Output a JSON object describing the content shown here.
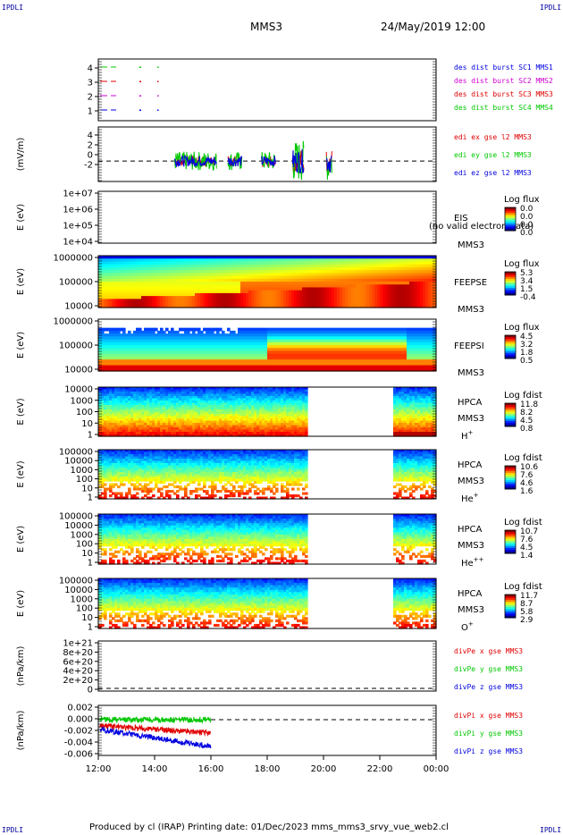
{
  "header": {
    "corner_label": "IPDLI",
    "title": "MMS3",
    "date": "24/May/2019 12:00"
  },
  "footer": {
    "text": "Produced by cl (IRAP)   Printing date: 01/Dec/2023   mms_mms3_srvy_vue_web2.cl"
  },
  "colors": {
    "red": "#e00000",
    "green": "#00c800",
    "blue": "#0000e0",
    "magenta": "#d000d0"
  },
  "chart_data": {
    "type": "multi-panel time series",
    "x_ticks": [
      "12:00",
      "14:00",
      "16:00",
      "18:00",
      "20:00",
      "22:00",
      "00:00"
    ],
    "panels": [
      {
        "id": "burst",
        "type": "line",
        "ylabel": "",
        "yticks": [
          "4",
          "3",
          "2",
          "1"
        ],
        "legend": [
          "des dist burst SC1 MMS1",
          "des dist burst SC2 MMS2",
          "des dist burst SC3 MMS3",
          "des dist burst SC4 MMS4"
        ]
      },
      {
        "id": "edi",
        "type": "line",
        "ylabel": "(mV/m)",
        "yticks": [
          "4",
          "2",
          "0",
          "-2"
        ],
        "ylim": [
          -3,
          5
        ],
        "legend": [
          "edi ex gse l2 MMS3",
          "edi ey gse l2 MMS3",
          "edi ez gse l2 MMS3"
        ]
      },
      {
        "id": "eis",
        "type": "heatmap",
        "ylabel": "E (eV)",
        "yticks": [
          "1e+07",
          "1e+06",
          "1e+05",
          "1e+04"
        ],
        "label1": "EIS",
        "label2": "MMS3",
        "overlay": "(no valid electron data)",
        "cbar_title": "Log flux",
        "cbar_ticks": [
          "0.0",
          "0.0",
          "0.0",
          "0.0"
        ]
      },
      {
        "id": "feepse",
        "type": "heatmap",
        "ylabel": "E (eV)",
        "yticks": [
          "1000000",
          "100000",
          "10000"
        ],
        "label1": "FEEPSE",
        "label2": "MMS3",
        "cbar_title": "Log flux",
        "cbar_ticks": [
          "5.3",
          "3.4",
          "1.5",
          "-0.4"
        ]
      },
      {
        "id": "feepsi",
        "type": "heatmap",
        "ylabel": "E (eV)",
        "yticks": [
          "1000000",
          "100000",
          "10000"
        ],
        "label1": "FEEPSI",
        "label2": "MMS3",
        "cbar_title": "Log flux",
        "cbar_ticks": [
          "4.5",
          "3.2",
          "1.8",
          "0.5"
        ]
      },
      {
        "id": "hpca_h",
        "type": "heatmap",
        "ylabel": "E (eV)",
        "yticks": [
          "10000",
          "1000",
          "100",
          "10",
          "1"
        ],
        "label1": "HPCA",
        "label2": "MMS3",
        "species": "H",
        "charge": "+",
        "gap": [
          "19:25",
          "22:30"
        ],
        "cbar_title": "Log fdist",
        "cbar_ticks": [
          "11.8",
          "8.2",
          "4.5",
          "0.8"
        ]
      },
      {
        "id": "hpca_he",
        "type": "heatmap",
        "ylabel": "E (eV)",
        "yticks": [
          "100000",
          "10000",
          "1000",
          "100",
          "10",
          "1"
        ],
        "label1": "HPCA",
        "label2": "MMS3",
        "species": "He",
        "charge": "+",
        "gap": [
          "19:25",
          "22:30"
        ],
        "cbar_title": "Log fdist",
        "cbar_ticks": [
          "10.6",
          "7.6",
          "4.6",
          "1.6"
        ]
      },
      {
        "id": "hpca_he2",
        "type": "heatmap",
        "ylabel": "E (eV)",
        "yticks": [
          "100000",
          "10000",
          "1000",
          "100",
          "10",
          "1"
        ],
        "label1": "HPCA",
        "label2": "MMS3",
        "species": "He",
        "charge": "++",
        "gap": [
          "19:25",
          "22:30"
        ],
        "cbar_title": "Log fdist",
        "cbar_ticks": [
          "10.7",
          "7.6",
          "4.5",
          "1.4"
        ]
      },
      {
        "id": "hpca_o",
        "type": "heatmap",
        "ylabel": "E (eV)",
        "yticks": [
          "100000",
          "10000",
          "1000",
          "100",
          "10",
          "1"
        ],
        "label1": "HPCA",
        "label2": "MMS3",
        "species": "O",
        "charge": "+",
        "gap": [
          "19:25",
          "22:30"
        ],
        "cbar_title": "Log fdist",
        "cbar_ticks": [
          "11.7",
          "8.7",
          "5.8",
          "2.9"
        ]
      },
      {
        "id": "divpe",
        "type": "line",
        "ylabel": "(nPa/km)",
        "yticks": [
          "1e+21",
          "8e+20",
          "6e+20",
          "4e+20",
          "2e+20",
          "0"
        ],
        "legend": [
          "divPe x gse MMS3",
          "divPe y gse MMS3",
          "divPe z gse MMS3"
        ]
      },
      {
        "id": "divpi",
        "type": "line",
        "ylabel": "(nPa/km)",
        "yticks": [
          "0.002",
          "0.000",
          "-0.002",
          "-0.004",
          "-0.006"
        ],
        "ylim": [
          -0.0075,
          0.003
        ],
        "legend": [
          "divPi x gse MMS3",
          "divPi y gse MMS3",
          "divPi z gse MMS3"
        ]
      }
    ]
  }
}
